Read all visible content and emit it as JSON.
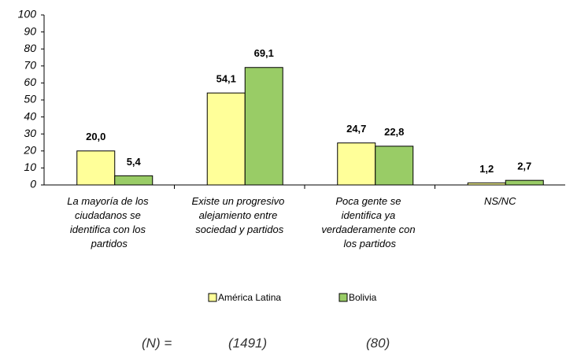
{
  "chart_data": {
    "type": "bar",
    "categories": [
      "La mayoría de los ciudadanos se identifica con los partidos",
      "Existe un progresivo alejamiento entre sociedad y partidos",
      "Poca gente se identifica ya verdaderamente con los partidos",
      "NS/NC"
    ],
    "series": [
      {
        "name": "América Latina",
        "color": "#ffff99",
        "values": [
          20.0,
          54.1,
          24.7,
          1.2
        ],
        "value_labels": [
          "20,0",
          "54,1",
          "24,7",
          "1,2"
        ]
      },
      {
        "name": "Bolivia",
        "color": "#99cc66",
        "values": [
          5.4,
          69.1,
          22.8,
          2.7
        ],
        "value_labels": [
          "5,4",
          "69,1",
          "22,8",
          "2,7"
        ]
      }
    ],
    "ylim": [
      0,
      100
    ],
    "yticks": [
      0,
      10,
      20,
      30,
      40,
      50,
      60,
      70,
      80,
      90,
      100
    ],
    "legend": "bottom",
    "footer": [
      "(N) =",
      "(1491)",
      "(80)"
    ]
  }
}
